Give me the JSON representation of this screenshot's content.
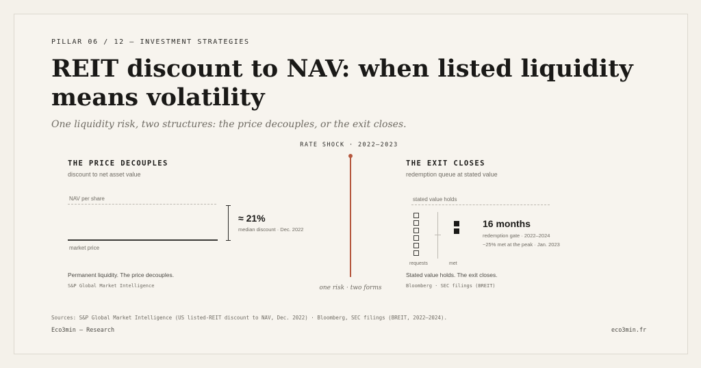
{
  "header": {
    "pillar": "PILLAR 06 / 12 — INVESTMENT STRATEGIES",
    "title": "REIT discount to NAV: when listed liquidity means volatility",
    "subtitle": "One liquidity risk, two structures: the price decouples, or the exit closes."
  },
  "center": {
    "rate_shock": "RATE SHOCK · 2022–2023",
    "caption": "one risk · two forms",
    "accent_color": "#b5573e"
  },
  "left": {
    "heading": "THE PRICE DECOUPLES",
    "subheading": "discount to net asset value",
    "nav_label": "NAV per share",
    "market_label": "market price",
    "discount_value": "≈ 21%",
    "discount_note": "median discount · Dec. 2022",
    "footer": "Permanent liquidity. The price decouples.",
    "source": "S&P Global Market Intelligence"
  },
  "right": {
    "heading": "THE EXIT CLOSES",
    "subheading": "redemption queue at stated value",
    "stated_label": "stated value holds",
    "requests_label": "requests",
    "met_label": "met",
    "requests_count": 6,
    "met_count": 2,
    "months_value": "16 months",
    "months_note1": "redemption gate · 2022–2024",
    "months_note2": "~25% met at the peak · Jan. 2023",
    "footer": "Stated value holds. The exit closes.",
    "source": "Bloomberg · SEC filings (BREIT)"
  },
  "footer": {
    "sources": "Sources: S&P Global Market Intelligence (US listed-REIT discount to NAV, Dec. 2022) · Bloomberg, SEC filings (BREIT, 2022–2024).",
    "brand": "Eco3min — Research",
    "site": "eco3min.fr"
  }
}
